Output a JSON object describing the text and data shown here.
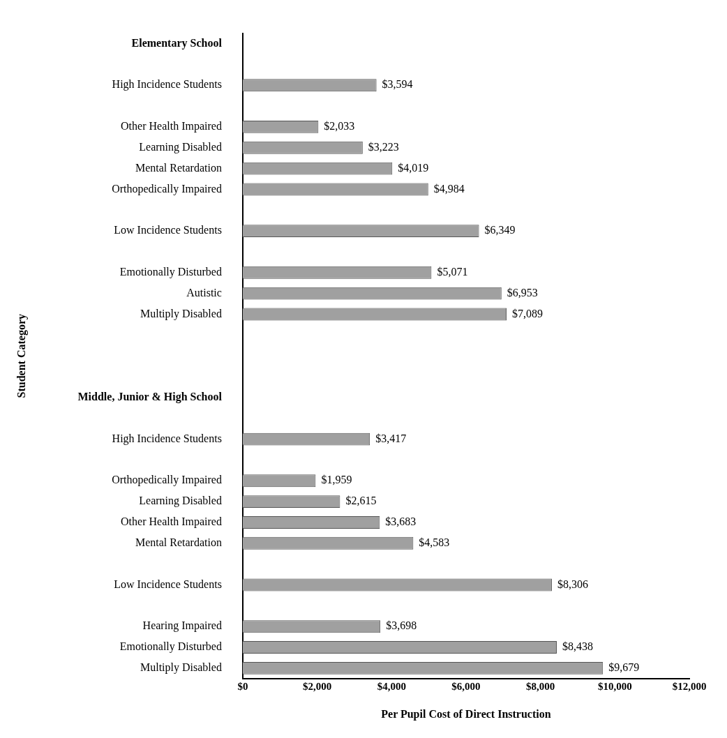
{
  "chart_data": {
    "type": "bar",
    "orientation": "horizontal",
    "xlabel": "Per Pupil Cost of Direct Instruction",
    "ylabel": "Student Category",
    "categories": [
      "Elementary School",
      null,
      "High Incidence Students",
      null,
      "Other Health Impaired",
      "Learning Disabled",
      "Mental Retardation",
      "Orthopedically Impaired",
      null,
      "Low Incidence Students",
      null,
      "Emotionally Disturbed",
      "Autistic",
      "Multiply Disabled",
      null,
      null,
      null,
      "Middle, Junior & High School",
      null,
      "High Incidence Students",
      null,
      "Orthopedically Impaired",
      "Learning Disabled",
      "Other Health Impaired",
      "Mental Retardation",
      null,
      "Low Incidence Students",
      null,
      "Hearing Impaired",
      "Emotionally Disturbed",
      "Multiply Disabled"
    ],
    "values": [
      null,
      null,
      3594,
      null,
      2033,
      3223,
      4019,
      4984,
      null,
      6349,
      null,
      5071,
      6953,
      7089,
      null,
      null,
      null,
      null,
      null,
      3417,
      null,
      1959,
      2615,
      3683,
      4583,
      null,
      8306,
      null,
      3698,
      8438,
      9679
    ],
    "value_labels": [
      null,
      null,
      "$3,594",
      null,
      "$2,033",
      "$3,223",
      "$4,019",
      "$4,984",
      null,
      "$6,349",
      null,
      "$5,071",
      "$6,953",
      "$7,089",
      null,
      null,
      null,
      null,
      null,
      "$3,417",
      null,
      "$1,959",
      "$2,615",
      "$3,683",
      "$4,583",
      null,
      "$8,306",
      null,
      "$3,698",
      "$8,438",
      "$9,679"
    ],
    "color": "#a0a0a0",
    "xlim": [
      0,
      12000
    ],
    "xticks": [
      {
        "value": 0,
        "label": "$0"
      },
      {
        "value": 2000,
        "label": "$2,000"
      },
      {
        "value": 4000,
        "label": "$4,000"
      },
      {
        "value": 6000,
        "label": "$6,000"
      },
      {
        "value": 8000,
        "label": "$8,000"
      },
      {
        "value": 10000,
        "label": "$10,000"
      },
      {
        "value": 12000,
        "label": "$12,000"
      }
    ],
    "grid": false
  }
}
